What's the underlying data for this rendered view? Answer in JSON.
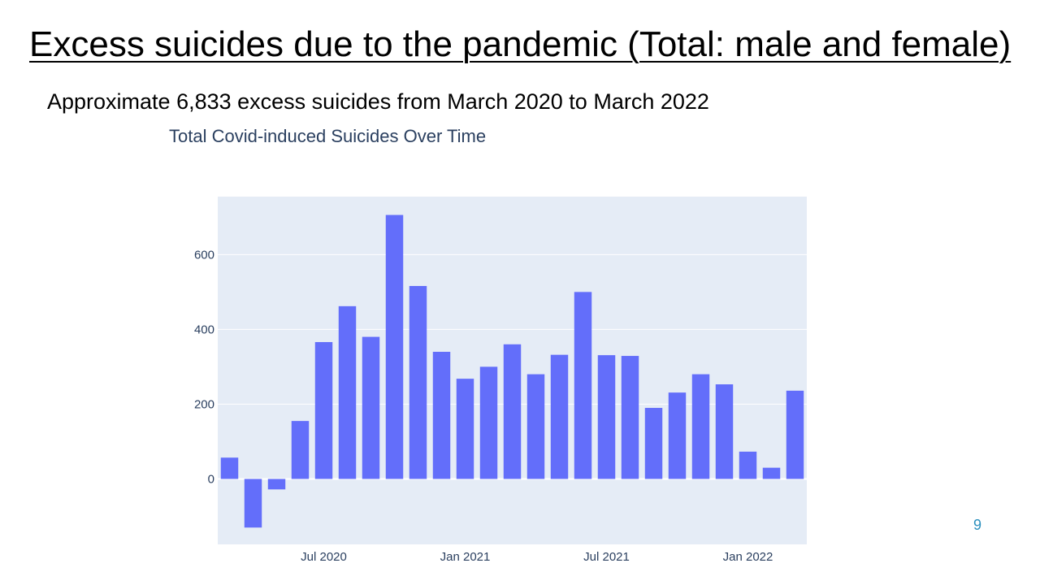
{
  "slide": {
    "title": "Excess suicides due to the pandemic (Total: male and female)",
    "subtitle": "Approximate 6,833 excess suicides from March 2020 to March 2022",
    "page_number": "9"
  },
  "colors": {
    "bar": "#636efa",
    "plot_bg": "#e5ecf6",
    "gridline": "#ffffff",
    "text": "#2a3f5f",
    "page_number": "#2a8fbd"
  },
  "chart_data": {
    "type": "bar",
    "title": "Total Covid-induced Suicides Over Time",
    "xlabel": "",
    "ylabel": "",
    "categories": [
      "2020-03",
      "2020-04",
      "2020-05",
      "2020-06",
      "2020-07",
      "2020-08",
      "2020-09",
      "2020-10",
      "2020-11",
      "2020-12",
      "2021-01",
      "2021-02",
      "2021-03",
      "2021-04",
      "2021-05",
      "2021-06",
      "2021-07",
      "2021-08",
      "2021-09",
      "2021-10",
      "2021-11",
      "2021-12",
      "2022-01",
      "2022-02",
      "2022-03"
    ],
    "values": [
      57,
      -130,
      -28,
      155,
      366,
      462,
      380,
      706,
      516,
      340,
      268,
      300,
      360,
      280,
      332,
      500,
      331,
      329,
      190,
      231,
      280,
      253,
      73,
      30,
      236
    ],
    "x_tick_labels": [
      "Jul 2020",
      "Jan 2021",
      "Jul 2021",
      "Jan 2022"
    ],
    "x_tick_positions": [
      4,
      10,
      16,
      22
    ],
    "y_ticks": [
      0,
      200,
      400,
      600
    ],
    "y_tick_labels": [
      "0",
      "200",
      "400",
      "600"
    ],
    "ylim": [
      -175,
      755
    ],
    "grid": true,
    "legend": "none"
  }
}
